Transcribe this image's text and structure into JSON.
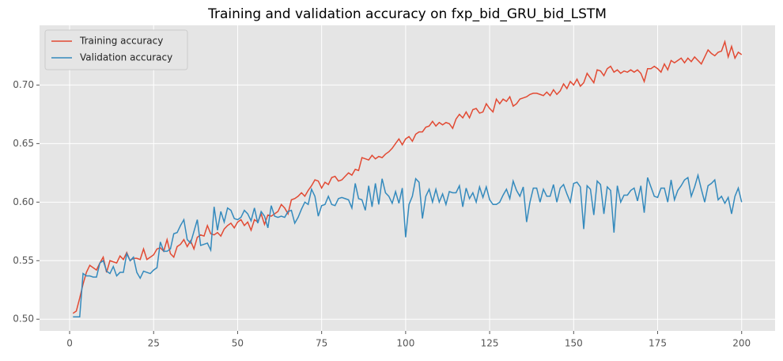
{
  "chart_data": {
    "type": "line",
    "title": "Training and validation accuracy on fxp_bid_GRU_bid_LSTM",
    "x": [
      1,
      2,
      3,
      4,
      5,
      6,
      7,
      8,
      9,
      10,
      11,
      12,
      13,
      14,
      15,
      16,
      17,
      18,
      19,
      20,
      21,
      22,
      23,
      24,
      25,
      26,
      27,
      28,
      29,
      30,
      31,
      32,
      33,
      34,
      35,
      36,
      37,
      38,
      39,
      40,
      41,
      42,
      43,
      44,
      45,
      46,
      47,
      48,
      49,
      50,
      51,
      52,
      53,
      54,
      55,
      56,
      57,
      58,
      59,
      60,
      61,
      62,
      63,
      64,
      65,
      66,
      67,
      68,
      69,
      70,
      71,
      72,
      73,
      74,
      75,
      76,
      77,
      78,
      79,
      80,
      81,
      82,
      83,
      84,
      85,
      86,
      87,
      88,
      89,
      90,
      91,
      92,
      93,
      94,
      95,
      96,
      97,
      98,
      99,
      100,
      101,
      102,
      103,
      104,
      105,
      106,
      107,
      108,
      109,
      110,
      111,
      112,
      113,
      114,
      115,
      116,
      117,
      118,
      119,
      120,
      121,
      122,
      123,
      124,
      125,
      126,
      127,
      128,
      129,
      130,
      131,
      132,
      133,
      134,
      135,
      136,
      137,
      138,
      139,
      140,
      141,
      142,
      143,
      144,
      145,
      146,
      147,
      148,
      149,
      150,
      151,
      152,
      153,
      154,
      155,
      156,
      157,
      158,
      159,
      160,
      161,
      162,
      163,
      164,
      165,
      166,
      167,
      168,
      169,
      170,
      171,
      172,
      173,
      174,
      175,
      176,
      177,
      178,
      179,
      180,
      181,
      182,
      183,
      184,
      185,
      186,
      187,
      188,
      189,
      190,
      191,
      192,
      193,
      194,
      195,
      196,
      197,
      198,
      199,
      200
    ],
    "series": [
      {
        "name": "Training accuracy",
        "color": "#E24A33",
        "values": [
          0.505,
          0.507,
          0.518,
          0.53,
          0.54,
          0.546,
          0.544,
          0.542,
          0.548,
          0.553,
          0.54,
          0.55,
          0.549,
          0.548,
          0.554,
          0.551,
          0.557,
          0.55,
          0.552,
          0.552,
          0.551,
          0.56,
          0.551,
          0.553,
          0.555,
          0.56,
          0.561,
          0.558,
          0.568,
          0.556,
          0.553,
          0.562,
          0.564,
          0.568,
          0.562,
          0.567,
          0.56,
          0.57,
          0.572,
          0.571,
          0.58,
          0.573,
          0.572,
          0.574,
          0.571,
          0.577,
          0.58,
          0.582,
          0.578,
          0.583,
          0.585,
          0.58,
          0.583,
          0.576,
          0.585,
          0.583,
          0.59,
          0.581,
          0.589,
          0.588,
          0.59,
          0.592,
          0.598,
          0.595,
          0.59,
          0.602,
          0.603,
          0.605,
          0.608,
          0.605,
          0.61,
          0.614,
          0.619,
          0.618,
          0.612,
          0.617,
          0.615,
          0.621,
          0.622,
          0.618,
          0.619,
          0.622,
          0.625,
          0.623,
          0.628,
          0.627,
          0.638,
          0.637,
          0.636,
          0.64,
          0.637,
          0.639,
          0.638,
          0.641,
          0.643,
          0.646,
          0.65,
          0.654,
          0.649,
          0.654,
          0.656,
          0.652,
          0.658,
          0.66,
          0.66,
          0.664,
          0.665,
          0.669,
          0.665,
          0.668,
          0.666,
          0.668,
          0.667,
          0.663,
          0.671,
          0.675,
          0.672,
          0.677,
          0.672,
          0.679,
          0.68,
          0.676,
          0.677,
          0.684,
          0.68,
          0.677,
          0.688,
          0.684,
          0.688,
          0.686,
          0.69,
          0.682,
          0.684,
          0.688,
          0.689,
          0.69,
          0.692,
          0.693,
          0.693,
          0.692,
          0.691,
          0.694,
          0.691,
          0.696,
          0.692,
          0.695,
          0.701,
          0.697,
          0.703,
          0.7,
          0.705,
          0.699,
          0.702,
          0.71,
          0.706,
          0.702,
          0.713,
          0.712,
          0.708,
          0.714,
          0.716,
          0.711,
          0.713,
          0.71,
          0.712,
          0.711,
          0.713,
          0.711,
          0.713,
          0.71,
          0.703,
          0.714,
          0.714,
          0.716,
          0.714,
          0.711,
          0.718,
          0.713,
          0.721,
          0.719,
          0.721,
          0.723,
          0.719,
          0.723,
          0.72,
          0.724,
          0.721,
          0.718,
          0.724,
          0.73,
          0.727,
          0.725,
          0.728,
          0.729,
          0.737,
          0.724,
          0.733,
          0.723,
          0.728,
          0.726
        ]
      },
      {
        "name": "Validation accuracy",
        "color": "#348ABD",
        "values": [
          0.502,
          0.502,
          0.502,
          0.539,
          0.537,
          0.537,
          0.536,
          0.536,
          0.548,
          0.55,
          0.541,
          0.539,
          0.545,
          0.537,
          0.54,
          0.54,
          0.556,
          0.55,
          0.553,
          0.54,
          0.535,
          0.541,
          0.54,
          0.539,
          0.542,
          0.544,
          0.566,
          0.558,
          0.558,
          0.56,
          0.573,
          0.574,
          0.58,
          0.585,
          0.568,
          0.565,
          0.575,
          0.585,
          0.563,
          0.564,
          0.565,
          0.559,
          0.596,
          0.576,
          0.592,
          0.583,
          0.595,
          0.593,
          0.586,
          0.585,
          0.587,
          0.593,
          0.59,
          0.584,
          0.595,
          0.582,
          0.592,
          0.588,
          0.578,
          0.597,
          0.588,
          0.587,
          0.588,
          0.587,
          0.592,
          0.593,
          0.582,
          0.587,
          0.594,
          0.6,
          0.598,
          0.611,
          0.605,
          0.588,
          0.597,
          0.598,
          0.605,
          0.598,
          0.597,
          0.603,
          0.604,
          0.603,
          0.602,
          0.595,
          0.616,
          0.603,
          0.602,
          0.593,
          0.614,
          0.596,
          0.616,
          0.598,
          0.62,
          0.608,
          0.605,
          0.599,
          0.609,
          0.599,
          0.612,
          0.57,
          0.598,
          0.605,
          0.62,
          0.617,
          0.586,
          0.605,
          0.611,
          0.6,
          0.611,
          0.6,
          0.607,
          0.598,
          0.609,
          0.608,
          0.608,
          0.614,
          0.596,
          0.612,
          0.603,
          0.608,
          0.6,
          0.613,
          0.604,
          0.613,
          0.602,
          0.598,
          0.598,
          0.6,
          0.606,
          0.611,
          0.603,
          0.618,
          0.61,
          0.605,
          0.613,
          0.583,
          0.6,
          0.612,
          0.612,
          0.6,
          0.611,
          0.605,
          0.605,
          0.615,
          0.6,
          0.612,
          0.615,
          0.607,
          0.6,
          0.616,
          0.617,
          0.613,
          0.577,
          0.614,
          0.611,
          0.589,
          0.618,
          0.615,
          0.59,
          0.613,
          0.61,
          0.574,
          0.614,
          0.6,
          0.606,
          0.606,
          0.61,
          0.612,
          0.601,
          0.614,
          0.591,
          0.621,
          0.613,
          0.605,
          0.604,
          0.612,
          0.612,
          0.6,
          0.619,
          0.602,
          0.61,
          0.614,
          0.619,
          0.621,
          0.605,
          0.613,
          0.623,
          0.611,
          0.6,
          0.614,
          0.616,
          0.619,
          0.602,
          0.605,
          0.599,
          0.604,
          0.59,
          0.605,
          0.612,
          0.6
        ]
      }
    ],
    "xlim": [
      -8.95,
      209.95
    ],
    "xticks": [
      0,
      25,
      50,
      75,
      100,
      125,
      150,
      175,
      200
    ],
    "ylim": [
      0.49,
      0.751
    ],
    "yticks": [
      {
        "value": 0.5,
        "label": "0.50"
      },
      0.55,
      {
        "value": 0.6,
        "label": "0.60"
      },
      0.65,
      {
        "value": 0.7,
        "label": "0.70"
      }
    ],
    "grid": true,
    "legend": "upper left"
  }
}
